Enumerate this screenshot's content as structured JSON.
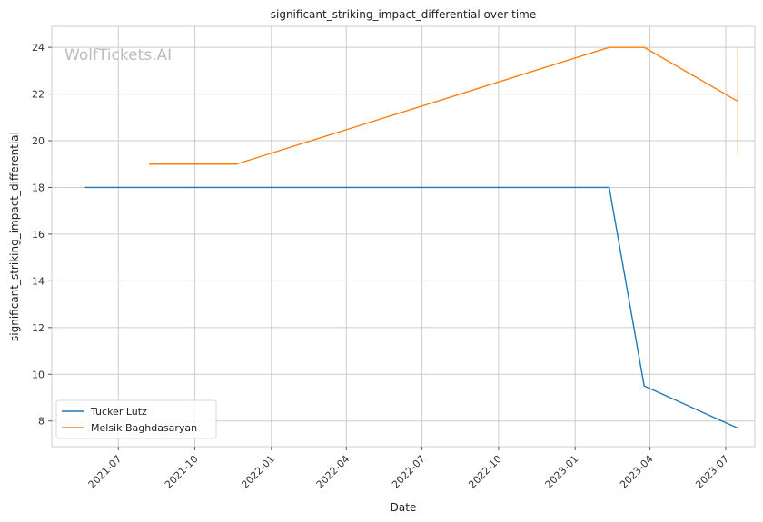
{
  "chart_data": {
    "type": "line",
    "title": "significant_striking_impact_differential over time",
    "xlabel": "Date",
    "ylabel": "significant_striking_impact_differential",
    "watermark": "WolfTickets.AI",
    "x_ticks": [
      "2021-07",
      "2021-10",
      "2022-01",
      "2022-04",
      "2022-07",
      "2022-10",
      "2023-01",
      "2023-04",
      "2023-07"
    ],
    "y_ticks": [
      8,
      10,
      12,
      14,
      16,
      18,
      20,
      22,
      24
    ],
    "xlim": [
      "2021-04-12",
      "2023-08-05"
    ],
    "ylim": [
      6.9,
      24.9
    ],
    "grid": true,
    "legend_position": "lower-left",
    "series": [
      {
        "name": "Tucker Lutz",
        "color": "#1f77b4",
        "points": [
          {
            "x": "2021-05-22",
            "y": 18
          },
          {
            "x": "2023-02-11",
            "y": 18
          },
          {
            "x": "2023-03-25",
            "y": 9.5
          },
          {
            "x": "2023-07-15",
            "y": 7.7
          }
        ]
      },
      {
        "name": "Melsik Baghdasaryan",
        "color": "#ff7f0e",
        "points": [
          {
            "x": "2021-08-07",
            "y": 19
          },
          {
            "x": "2021-11-20",
            "y": 19
          },
          {
            "x": "2023-02-11",
            "y": 24
          },
          {
            "x": "2023-03-25",
            "y": 24
          },
          {
            "x": "2023-07-15",
            "y": 21.7
          }
        ]
      }
    ],
    "annotations": [
      {
        "type": "vertical-range",
        "x": "2023-07-15",
        "y_from": 19.4,
        "y_to": 24,
        "color": "#ff7f0e"
      }
    ]
  }
}
